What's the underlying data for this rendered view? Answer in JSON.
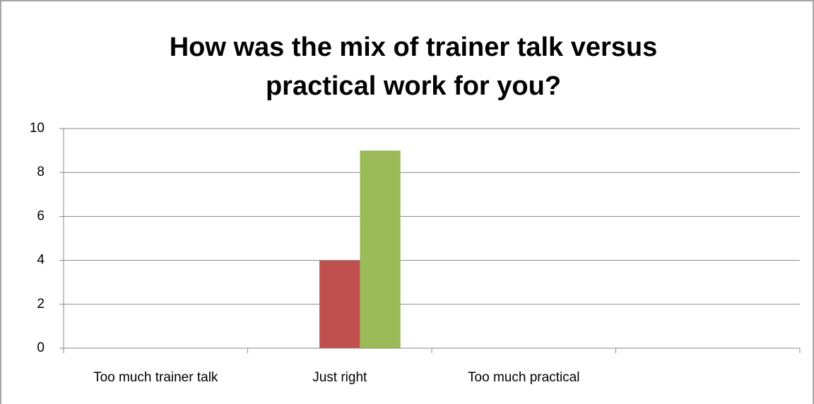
{
  "chart_data": {
    "type": "bar",
    "title": "How was the mix of trainer talk versus practical work for you?",
    "categories": [
      "Too much trainer talk",
      "Just right",
      "Too much practical",
      null
    ],
    "series": [
      {
        "color": "#4f81bd",
        "values": [
          0,
          0,
          0,
          0
        ]
      },
      {
        "color": "#c0504d",
        "values": [
          0,
          4,
          0,
          0
        ]
      },
      {
        "color": "#9bbb59",
        "values": [
          0,
          9,
          0,
          0
        ]
      }
    ],
    "ylim": [
      0,
      10
    ],
    "yticks": [
      0,
      2,
      4,
      6,
      8,
      10
    ],
    "grid": true
  }
}
